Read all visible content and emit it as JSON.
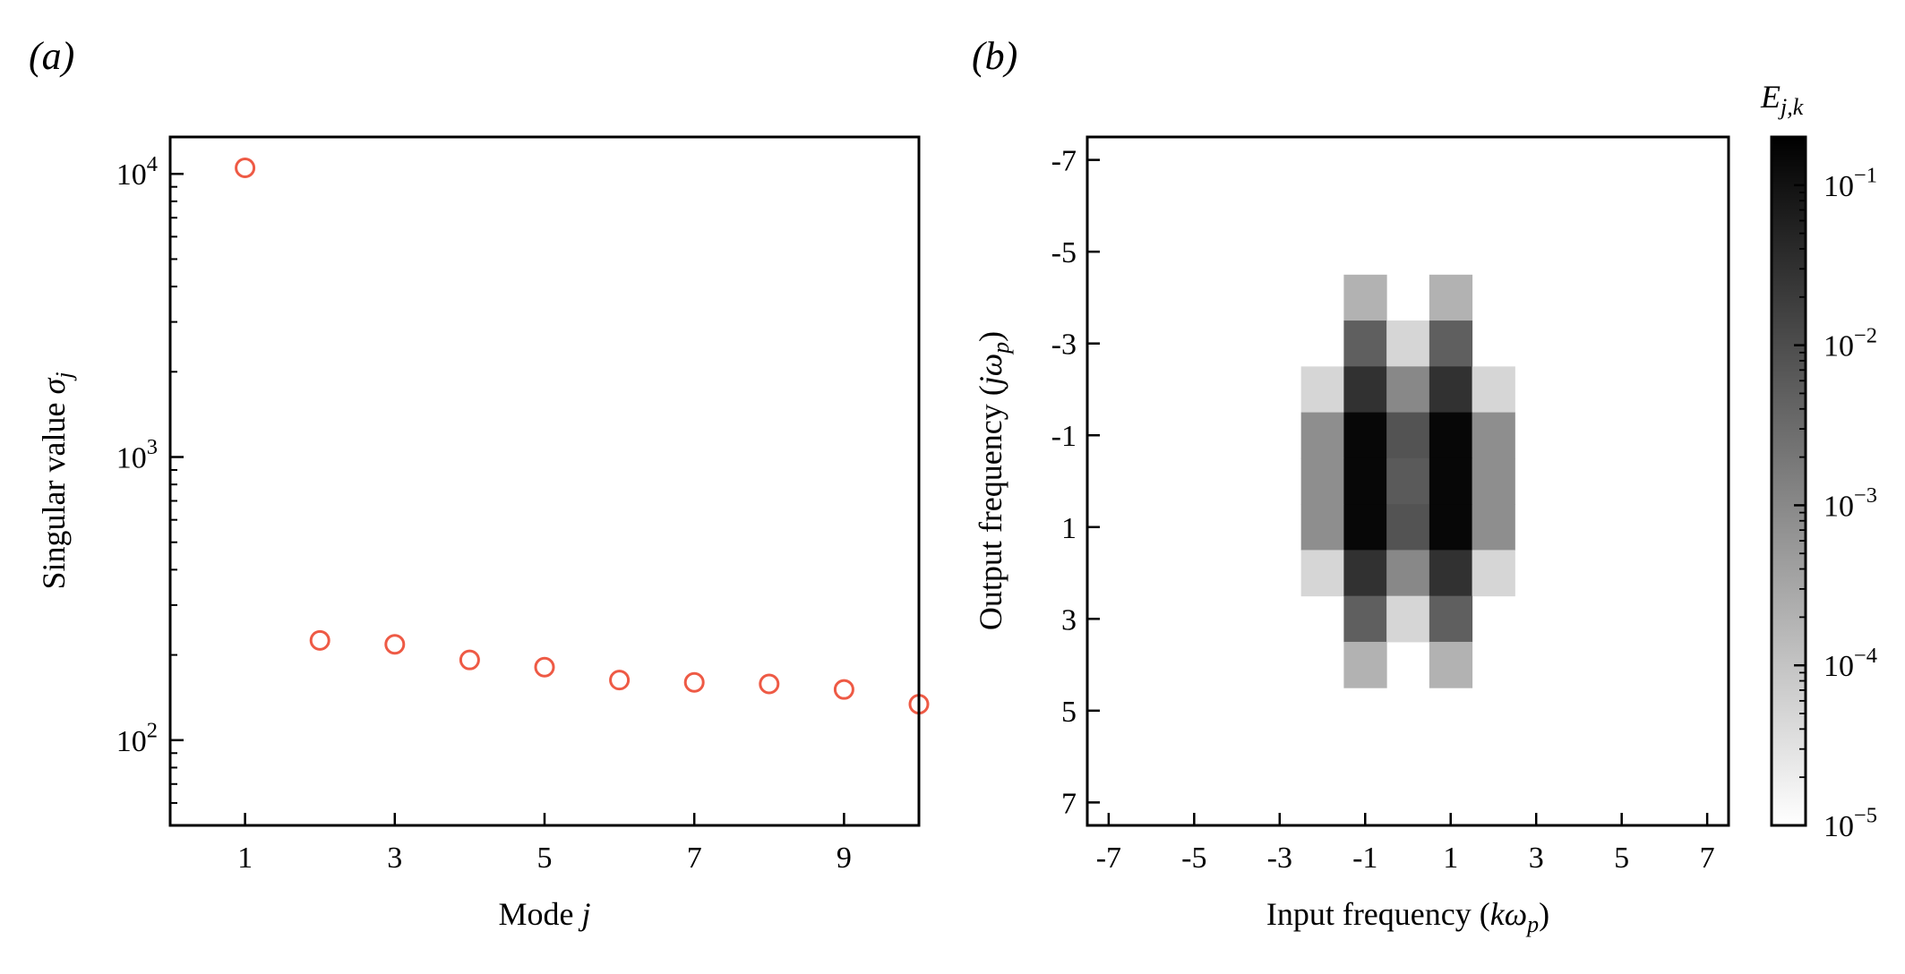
{
  "chart_data": [
    {
      "panel_label": "(a)",
      "type": "scatter",
      "xlabel_text": "Mode ",
      "xlabel_var": "j",
      "ylabel_text": "Singular value ",
      "ylabel_var": "σ",
      "ylabel_sub": "j",
      "y_scale": "log",
      "xlim": [
        0,
        10.0
      ],
      "ylim": [
        50,
        13500
      ],
      "x_ticks": [
        1,
        3,
        5,
        7,
        9
      ],
      "x_tick_labels": [
        "1",
        "3",
        "5",
        "7",
        "9"
      ],
      "y_ticks": [
        {
          "base": "10",
          "exp": "2",
          "value": 100
        },
        {
          "base": "10",
          "exp": "3",
          "value": 1000
        },
        {
          "base": "10",
          "exp": "4",
          "value": 10000
        }
      ],
      "x": [
        1,
        2,
        3,
        4,
        5,
        6,
        7,
        8,
        9,
        10
      ],
      "y": [
        10500,
        225,
        218,
        192,
        181,
        163,
        160,
        158,
        151,
        134
      ],
      "marker": "open-circle",
      "marker_color": "#ee5a45",
      "grid": false
    },
    {
      "panel_label": "(b)",
      "type": "heatmap",
      "xlabel_text": "Input frequency (",
      "xlabel_var": "k",
      "xlabel_omega": "ω",
      "xlabel_sub": "p",
      "xlabel_close": ")",
      "ylabel_text": "Output frequency (",
      "ylabel_var": "j",
      "ylabel_omega": "ω",
      "ylabel_sub": "p",
      "ylabel_close": ")",
      "x_ticks": [
        -7,
        -5,
        -3,
        -1,
        1,
        3,
        5,
        7
      ],
      "x_tick_labels": [
        "-7",
        "-5",
        "-3",
        "-1",
        "1",
        "3",
        "5",
        "7"
      ],
      "y_ticks": [
        -7,
        -5,
        -3,
        -1,
        1,
        3,
        5,
        7
      ],
      "y_tick_labels": [
        "-7",
        "-5",
        "-3",
        "-1",
        "1",
        "3",
        "5",
        "7"
      ],
      "xlim": [
        -7.5,
        7.5
      ],
      "ylim": [
        -7.5,
        7.5
      ],
      "y_inverted": true,
      "colormap": "greys",
      "color_scale": "log",
      "vmin": 1e-05,
      "vmax": 0.2,
      "colorbar_title_var": "E",
      "colorbar_title_sub": "j,k",
      "colorbar_ticks": [
        {
          "base": "10",
          "exp": "−1",
          "value": 0.1
        },
        {
          "base": "10",
          "exp": "−2",
          "value": 0.01
        },
        {
          "base": "10",
          "exp": "−3",
          "value": 0.001
        },
        {
          "base": "10",
          "exp": "−4",
          "value": 0.0001
        },
        {
          "base": "10",
          "exp": "−5",
          "value": 1e-05
        }
      ],
      "cells": [
        {
          "j": -4,
          "k": -1,
          "value": 0.0002
        },
        {
          "j": -4,
          "k": 1,
          "value": 0.0002
        },
        {
          "j": -3,
          "k": -1,
          "value": 0.005
        },
        {
          "j": -3,
          "k": 0,
          "value": 5e-05
        },
        {
          "j": -3,
          "k": 1,
          "value": 0.005
        },
        {
          "j": -2,
          "k": -2,
          "value": 5e-05
        },
        {
          "j": -2,
          "k": -1,
          "value": 0.03
        },
        {
          "j": -2,
          "k": 0,
          "value": 0.001
        },
        {
          "j": -2,
          "k": 1,
          "value": 0.03
        },
        {
          "j": -2,
          "k": 2,
          "value": 5e-05
        },
        {
          "j": -1,
          "k": -2,
          "value": 0.0008
        },
        {
          "j": -1,
          "k": -1,
          "value": 0.15
        },
        {
          "j": -1,
          "k": 0,
          "value": 0.008
        },
        {
          "j": -1,
          "k": 1,
          "value": 0.15
        },
        {
          "j": -1,
          "k": 2,
          "value": 0.0008
        },
        {
          "j": 0,
          "k": -2,
          "value": 0.0008
        },
        {
          "j": 0,
          "k": -1,
          "value": 0.15
        },
        {
          "j": 0,
          "k": 0,
          "value": 0.006
        },
        {
          "j": 0,
          "k": 1,
          "value": 0.15
        },
        {
          "j": 0,
          "k": 2,
          "value": 0.0008
        },
        {
          "j": 1,
          "k": -2,
          "value": 0.0008
        },
        {
          "j": 1,
          "k": -1,
          "value": 0.15
        },
        {
          "j": 1,
          "k": 0,
          "value": 0.008
        },
        {
          "j": 1,
          "k": 1,
          "value": 0.15
        },
        {
          "j": 1,
          "k": 2,
          "value": 0.0008
        },
        {
          "j": 2,
          "k": -2,
          "value": 5e-05
        },
        {
          "j": 2,
          "k": -1,
          "value": 0.03
        },
        {
          "j": 2,
          "k": 0,
          "value": 0.001
        },
        {
          "j": 2,
          "k": 1,
          "value": 0.03
        },
        {
          "j": 2,
          "k": 2,
          "value": 5e-05
        },
        {
          "j": 3,
          "k": -1,
          "value": 0.005
        },
        {
          "j": 3,
          "k": 0,
          "value": 5e-05
        },
        {
          "j": 3,
          "k": 1,
          "value": 0.005
        },
        {
          "j": 4,
          "k": -1,
          "value": 0.0002
        },
        {
          "j": 4,
          "k": 1,
          "value": 0.0002
        }
      ],
      "grid": false
    }
  ]
}
